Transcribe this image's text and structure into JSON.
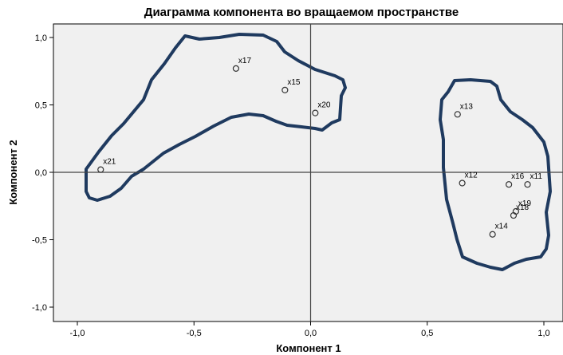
{
  "chart_data": {
    "type": "scatter",
    "title": "Диаграмма компонента во вращаемом пространстве",
    "xlabel": "Компонент 1",
    "ylabel": "Компонент 2",
    "xlim": [
      -1.0,
      1.05
    ],
    "ylim": [
      -1.1,
      1.1
    ],
    "xticks": [
      -1.0,
      -0.5,
      0.0,
      0.5,
      1.0
    ],
    "xtick_labels": [
      "-1,0",
      "-0,5",
      "0,0",
      "0,5",
      "1,0"
    ],
    "yticks": [
      -1.0,
      -0.5,
      0.0,
      0.5,
      1.0
    ],
    "ytick_labels": [
      "-1,0",
      "-0,5",
      "0,0",
      "0,5",
      "1,0"
    ],
    "grid": false,
    "points": [
      {
        "label": "x17",
        "x": -0.32,
        "y": 0.77
      },
      {
        "label": "x15",
        "x": -0.11,
        "y": 0.61
      },
      {
        "label": "x20",
        "x": 0.02,
        "y": 0.44
      },
      {
        "label": "x21",
        "x": -0.9,
        "y": 0.02
      },
      {
        "label": "x13",
        "x": 0.63,
        "y": 0.43
      },
      {
        "label": "x12",
        "x": 0.65,
        "y": -0.08
      },
      {
        "label": "x16",
        "x": 0.85,
        "y": -0.09
      },
      {
        "label": "x11",
        "x": 0.93,
        "y": -0.09
      },
      {
        "label": "x19",
        "x": 0.88,
        "y": -0.29
      },
      {
        "label": "x18",
        "x": 0.87,
        "y": -0.32
      },
      {
        "label": "x14",
        "x": 0.78,
        "y": -0.46
      }
    ],
    "colors": {
      "plot_background": "#f0f0f0",
      "outline": "#1f3a5f",
      "reference_lines": "#444444",
      "marker": "#333333"
    }
  }
}
